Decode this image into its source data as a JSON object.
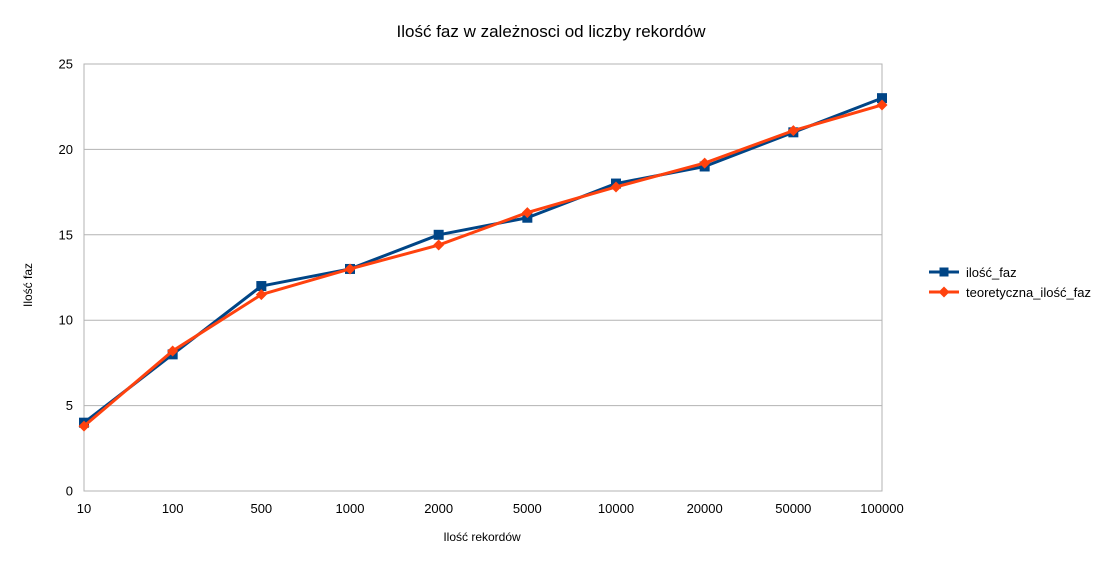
{
  "chart_data": {
    "type": "line",
    "title": "Ilość faz w zależnosci od liczby rekordów",
    "xlabel": "Ilość rekordów",
    "ylabel": "Ilość faz",
    "categories": [
      "10",
      "100",
      "500",
      "1000",
      "2000",
      "5000",
      "10000",
      "20000",
      "50000",
      "100000"
    ],
    "ylim": [
      0,
      25
    ],
    "yticks": [
      0,
      5,
      10,
      15,
      20,
      25
    ],
    "grid": true,
    "legend_position": "right",
    "series": [
      {
        "name": "ilość_faz",
        "color": "#004586",
        "marker": "square",
        "values": [
          4,
          8,
          12,
          13,
          15,
          16,
          18,
          19,
          21,
          23
        ]
      },
      {
        "name": "teoretyczna_ilość_faz",
        "color": "#ff420e",
        "marker": "diamond",
        "values": [
          3.8,
          8.2,
          11.5,
          13.0,
          14.4,
          16.3,
          17.8,
          19.2,
          21.1,
          22.6
        ]
      }
    ]
  }
}
